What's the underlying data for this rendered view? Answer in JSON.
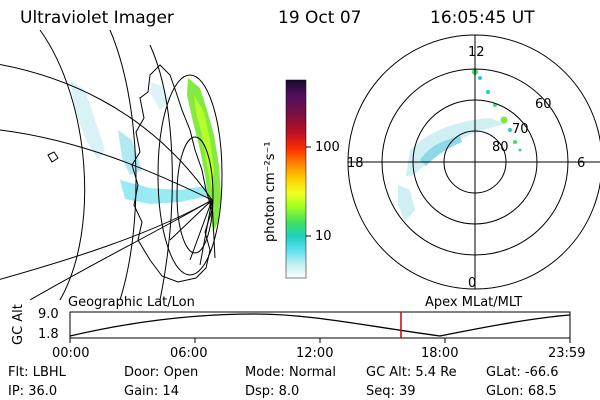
{
  "header": {
    "instrument": "Ultraviolet Imager",
    "date": "19 Oct 07",
    "time": "16:05:45 UT"
  },
  "colorbar": {
    "label": "photon cm⁻²s⁻¹",
    "ticks": [
      "100",
      "10"
    ],
    "stops": [
      "#1a0a2a",
      "#50115e",
      "#800f3e",
      "#c01020",
      "#ff3000",
      "#ff8000",
      "#ffd000",
      "#f0ff20",
      "#a0ff20",
      "#40e060",
      "#20d0c0",
      "#60e0f0",
      "#c0f0f0",
      "#ffffff"
    ]
  },
  "polar": {
    "mlt_labels": {
      "top": "12",
      "left": "18",
      "right": "6",
      "bottom": "0"
    },
    "lat_labels": [
      "60",
      "70",
      "80"
    ]
  },
  "altitude_plot": {
    "ylabel": "GC Alt",
    "yticks": [
      "9.0",
      "1.8"
    ],
    "left_title": "Geographic Lat/Lon",
    "right_title": "Apex MLat/MLT",
    "xticks": [
      "00:00",
      "06:00",
      "12:00",
      "18:00",
      "23:59"
    ],
    "marker_color": "#d00000"
  },
  "info": {
    "row1": [
      {
        "key": "Flt:",
        "val": "LBHL"
      },
      {
        "key": "Door:",
        "val": "Open"
      },
      {
        "key": "Mode:",
        "val": "Normal"
      },
      {
        "key": "GC Alt:",
        "val": "5.4 Re"
      },
      {
        "key": "GLat:",
        "val": "-66.6"
      }
    ],
    "row2": [
      {
        "key": "IP:",
        "val": "36.0"
      },
      {
        "key": "Gain:",
        "val": "14"
      },
      {
        "key": "Dsp:",
        "val": "8.0"
      },
      {
        "key": "Seq:",
        "val": "39"
      },
      {
        "key": "GLon:",
        "val": "68.5"
      }
    ]
  }
}
